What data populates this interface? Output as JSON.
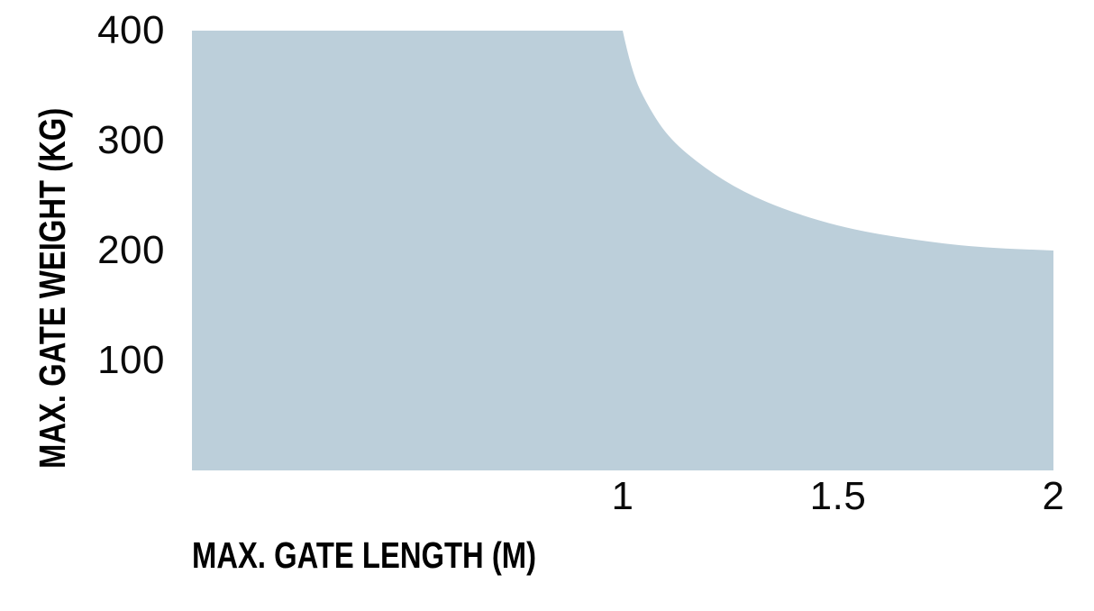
{
  "chart_data": {
    "type": "area",
    "title": "",
    "xlabel": "MAX. GATE LENGTH (M)",
    "ylabel": "MAX. GATE WEIGHT (KG)",
    "xlim": [
      0,
      2
    ],
    "ylim": [
      0,
      400
    ],
    "grid": false,
    "legend": false,
    "x_ticks": [
      {
        "value": 1,
        "label": "1"
      },
      {
        "value": 1.5,
        "label": "1.5"
      },
      {
        "value": 2,
        "label": "2"
      }
    ],
    "y_ticks": [
      {
        "value": 400,
        "label": "400"
      },
      {
        "value": 300,
        "label": "300"
      },
      {
        "value": 200,
        "label": "200"
      },
      {
        "value": 100,
        "label": "100"
      }
    ],
    "fill_color": "#bccfda",
    "background_color": "#ffffff",
    "text_color": "#000000",
    "envelope": {
      "flat_max_weight_kg": 400,
      "flat_until_length_m": 1.0,
      "end_length_m": 2.0,
      "end_weight_kg": 200,
      "curve_points": [
        [
          1.0,
          400
        ],
        [
          1.02,
          363
        ],
        [
          1.06,
          330
        ],
        [
          1.11,
          301
        ],
        [
          1.19,
          275
        ],
        [
          1.28,
          253
        ],
        [
          1.39,
          235
        ],
        [
          1.52,
          220
        ],
        [
          1.67,
          210
        ],
        [
          1.82,
          203
        ],
        [
          2.0,
          200
        ]
      ]
    }
  }
}
